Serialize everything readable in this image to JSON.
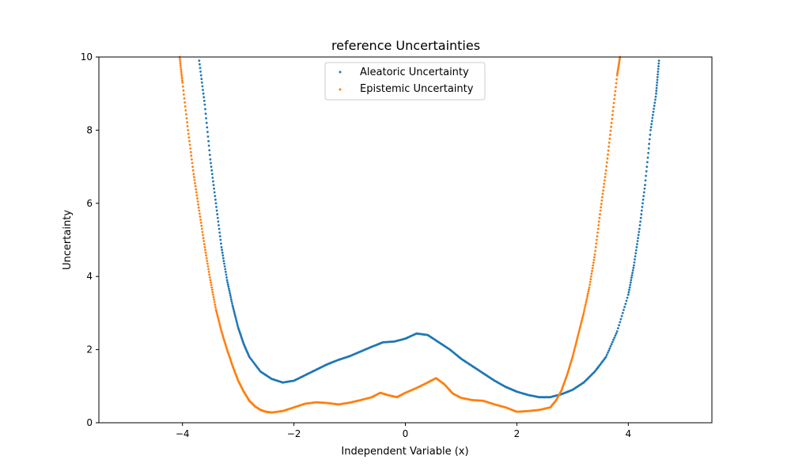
{
  "chart_data": {
    "type": "scatter",
    "title": "reference Uncertainties",
    "xlabel": "Independent Variable (x)",
    "ylabel": "Uncertainty",
    "xlim": [
      -5.5,
      5.5
    ],
    "ylim": [
      0,
      10
    ],
    "xticks": [
      -4,
      -2,
      0,
      2,
      4
    ],
    "xtick_labels": [
      "−4",
      "−2",
      "0",
      "2",
      "4"
    ],
    "yticks": [
      0,
      2,
      4,
      6,
      8,
      10
    ],
    "ytick_labels": [
      "0",
      "2",
      "4",
      "6",
      "8",
      "10"
    ],
    "grid": false,
    "legend_position": "upper-center",
    "series": [
      {
        "name": "Aleatoric Uncertainty",
        "color": "#1f77b4",
        "x": [
          -3.7,
          -3.6,
          -3.5,
          -3.4,
          -3.3,
          -3.2,
          -3.1,
          -3.0,
          -2.9,
          -2.8,
          -2.6,
          -2.4,
          -2.2,
          -2.0,
          -1.8,
          -1.6,
          -1.4,
          -1.2,
          -1.0,
          -0.8,
          -0.6,
          -0.4,
          -0.2,
          0.0,
          0.2,
          0.4,
          0.6,
          0.8,
          1.0,
          1.2,
          1.4,
          1.6,
          1.8,
          2.0,
          2.2,
          2.4,
          2.6,
          2.8,
          3.0,
          3.2,
          3.4,
          3.6,
          3.8,
          4.0,
          4.1,
          4.2,
          4.3,
          4.4,
          4.5,
          4.55
        ],
        "y": [
          9.9,
          8.7,
          7.2,
          6.0,
          4.8,
          3.9,
          3.2,
          2.6,
          2.15,
          1.8,
          1.4,
          1.2,
          1.1,
          1.15,
          1.3,
          1.45,
          1.6,
          1.72,
          1.82,
          1.95,
          2.08,
          2.2,
          2.22,
          2.3,
          2.44,
          2.4,
          2.2,
          2.0,
          1.75,
          1.55,
          1.35,
          1.15,
          0.98,
          0.85,
          0.76,
          0.7,
          0.7,
          0.78,
          0.9,
          1.1,
          1.4,
          1.8,
          2.5,
          3.5,
          4.3,
          5.3,
          6.5,
          8.0,
          9.0,
          9.9
        ]
      },
      {
        "name": "Epistemic Uncertainty",
        "color": "#ff7f0e",
        "x": [
          -4.05,
          -4.0,
          -3.9,
          -3.8,
          -3.7,
          -3.6,
          -3.5,
          -3.4,
          -3.3,
          -3.2,
          -3.1,
          -3.0,
          -2.9,
          -2.8,
          -2.7,
          -2.6,
          -2.5,
          -2.4,
          -2.2,
          -2.0,
          -1.8,
          -1.6,
          -1.4,
          -1.2,
          -1.0,
          -0.8,
          -0.6,
          -0.45,
          -0.3,
          -0.15,
          0.0,
          0.2,
          0.4,
          0.55,
          0.7,
          0.85,
          1.0,
          1.2,
          1.4,
          1.6,
          1.8,
          2.0,
          2.2,
          2.4,
          2.6,
          2.7,
          2.8,
          2.9,
          3.0,
          3.1,
          3.2,
          3.3,
          3.4,
          3.5,
          3.6,
          3.7,
          3.8,
          3.85
        ],
        "y": [
          10.0,
          9.3,
          8.0,
          6.8,
          5.8,
          4.8,
          3.9,
          3.1,
          2.5,
          2.0,
          1.55,
          1.15,
          0.85,
          0.6,
          0.45,
          0.35,
          0.3,
          0.28,
          0.32,
          0.42,
          0.52,
          0.56,
          0.54,
          0.5,
          0.55,
          0.62,
          0.7,
          0.82,
          0.75,
          0.7,
          0.82,
          0.95,
          1.1,
          1.22,
          1.05,
          0.8,
          0.68,
          0.62,
          0.6,
          0.5,
          0.42,
          0.3,
          0.32,
          0.35,
          0.42,
          0.6,
          0.88,
          1.3,
          1.8,
          2.4,
          3.0,
          3.7,
          4.6,
          5.8,
          6.9,
          8.2,
          9.5,
          10.0
        ]
      }
    ]
  }
}
